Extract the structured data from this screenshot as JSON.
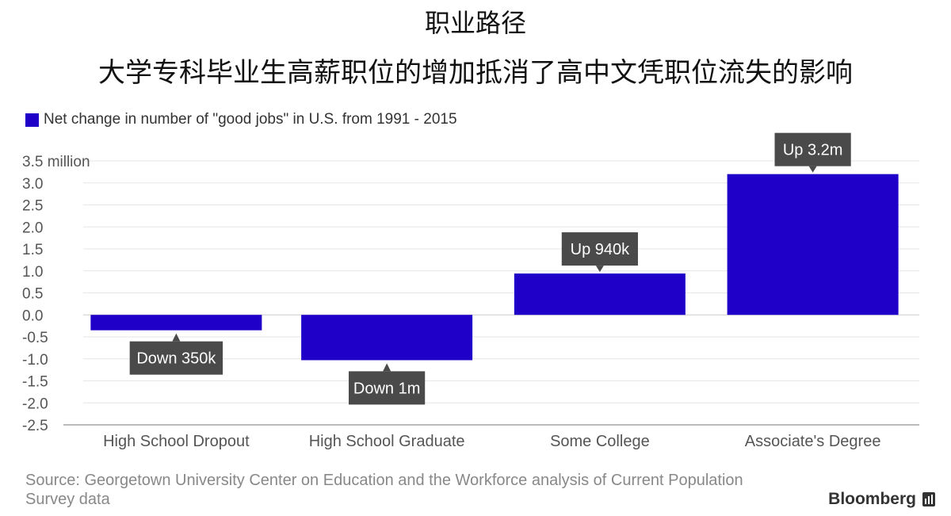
{
  "title": "职业路径",
  "subtitle": "大学专科毕业生高薪职位的增加抵消了高中文凭职位流失的影响",
  "source": "Source: Georgetown University Center on Education and the Workforce analysis of Current Population Survey data",
  "brand": "Bloomberg",
  "colors": {
    "bar": "#1f00c8",
    "callout": "#4a4a4a",
    "grid": "#e6e6e6",
    "zero": "#cccccc"
  },
  "chart_data": {
    "type": "bar",
    "legend_position": "top-left",
    "grid": true,
    "categories": [
      "High School Dropout",
      "High School Graduate",
      "Some College",
      "Associate's Degree"
    ],
    "series": [
      {
        "name": "Net change in number of \"good jobs\" in U.S. from 1991 - 2015",
        "values": [
          -0.35,
          -1.03,
          0.94,
          3.2
        ]
      }
    ],
    "annotations": [
      "Down 350k",
      "Down 1m",
      "Up 940k",
      "Up 3.2m"
    ],
    "ylim": [
      -2.5,
      3.5
    ],
    "yticks": [
      3.5,
      3.0,
      2.5,
      2.0,
      1.5,
      1.0,
      0.5,
      0.0,
      -0.5,
      -1.0,
      -1.5,
      -2.0,
      -2.5
    ],
    "ytick_labels": [
      "3.5 million",
      "3.0",
      "2.5",
      "2.0",
      "1.5",
      "1.0",
      "0.5",
      "0.0",
      "-0.5",
      "-1.0",
      "-1.5",
      "-2.0",
      "-2.5"
    ]
  }
}
